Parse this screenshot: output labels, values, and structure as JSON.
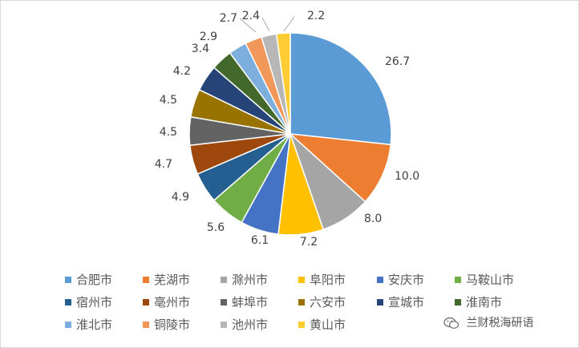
{
  "chart_data": {
    "type": "pie",
    "categories": [
      "合肥市",
      "芜湖市",
      "滁州市",
      "阜阳市",
      "安庆市",
      "马鞍山市",
      "宿州市",
      "亳州市",
      "蚌埠市",
      "六安市",
      "宣城市",
      "淮南市",
      "淮北市",
      "铜陵市",
      "池州市",
      "黄山市"
    ],
    "values": [
      26.7,
      10.0,
      8.0,
      7.2,
      6.1,
      5.6,
      4.9,
      4.7,
      4.5,
      4.5,
      4.2,
      3.4,
      2.9,
      2.7,
      2.4,
      2.2
    ],
    "value_labels": [
      "26.7",
      "10.0",
      "8.0",
      "7.2",
      "6.1",
      "5.6",
      "4.9",
      "4.7",
      "4.5",
      "4.5",
      "4.2",
      "3.4",
      "2.9",
      "2.7",
      "2.4",
      "2.2"
    ],
    "colors": [
      "#5b9bd5",
      "#ed7d31",
      "#a5a5a5",
      "#ffc000",
      "#4472c4",
      "#70ad47",
      "#255e91",
      "#9e480e",
      "#636363",
      "#997300",
      "#264478",
      "#43682b",
      "#7cafdd",
      "#f1975a",
      "#b7b7b7",
      "#ffcd33"
    ],
    "legend_position": "bottom",
    "start_angle": "12 o'clock, clockwise"
  },
  "watermark": {
    "icon": "wechat-icon",
    "text": "兰财税海研语"
  }
}
